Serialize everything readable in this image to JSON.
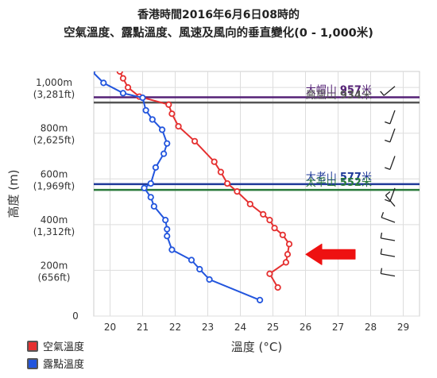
{
  "title_line1": "香港時間2016年6月6日08時的",
  "title_line2": "空氣溫度、露點溫度、風速及風向的垂直變化(0 - 1,000米)",
  "chart_data": {
    "type": "line",
    "xlabel": "溫度 (°C)",
    "ylabel": "高度 (m)",
    "xlim": [
      19.5,
      29.5
    ],
    "ylim": [
      0,
      1070
    ],
    "x_ticks": [
      "20",
      "21",
      "22",
      "23",
      "24",
      "25",
      "26",
      "27",
      "28",
      "29"
    ],
    "y_ticks": [
      {
        "value": 1000,
        "label": "1,000m",
        "sub": "(3,281ft)"
      },
      {
        "value": 800,
        "label": "800m",
        "sub": "(2,625ft)"
      },
      {
        "value": 600,
        "label": "600m",
        "sub": "(1,969ft)"
      },
      {
        "value": 400,
        "label": "400m",
        "sub": "(1,312ft)"
      },
      {
        "value": 200,
        "label": "200m",
        "sub": "(656ft)"
      },
      {
        "value": 0,
        "label": "0",
        "sub": ""
      }
    ],
    "series": [
      {
        "name": "空氣溫度",
        "color": "#e53030",
        "points": [
          [
            20.3,
            1070
          ],
          [
            20.4,
            1040
          ],
          [
            20.55,
            1000
          ],
          [
            20.9,
            960
          ],
          [
            21.8,
            925
          ],
          [
            21.9,
            885
          ],
          [
            22.1,
            830
          ],
          [
            22.6,
            765
          ],
          [
            23.2,
            675
          ],
          [
            23.4,
            630
          ],
          [
            23.6,
            580
          ],
          [
            23.9,
            545
          ],
          [
            24.3,
            490
          ],
          [
            24.7,
            445
          ],
          [
            24.9,
            420
          ],
          [
            25.05,
            385
          ],
          [
            25.3,
            355
          ],
          [
            25.5,
            315
          ],
          [
            25.45,
            270
          ],
          [
            25.4,
            235
          ],
          [
            24.9,
            185
          ],
          [
            25.15,
            125
          ]
        ]
      },
      {
        "name": "露點溫度",
        "color": "#2255dd",
        "points": [
          [
            19.45,
            1070
          ],
          [
            19.8,
            1020
          ],
          [
            20.4,
            975
          ],
          [
            21.0,
            955
          ],
          [
            21.1,
            900
          ],
          [
            21.3,
            860
          ],
          [
            21.6,
            815
          ],
          [
            21.75,
            755
          ],
          [
            21.65,
            710
          ],
          [
            21.4,
            650
          ],
          [
            21.25,
            580
          ],
          [
            21.05,
            560
          ],
          [
            21.25,
            520
          ],
          [
            21.35,
            480
          ],
          [
            21.7,
            420
          ],
          [
            21.75,
            380
          ],
          [
            21.75,
            350
          ],
          [
            21.9,
            290
          ],
          [
            22.5,
            245
          ],
          [
            22.75,
            205
          ],
          [
            23.05,
            160
          ],
          [
            24.6,
            70
          ]
        ]
      }
    ],
    "reference_lines": [
      {
        "label": "大帽山",
        "value_text": "957米",
        "height": 957,
        "color": "#552277"
      },
      {
        "label": "鳳凰山",
        "value_text": "934米",
        "height": 934,
        "color": "#555555"
      },
      {
        "label": "大老山",
        "value_text": "577米",
        "height": 577,
        "color": "#1f3a99"
      },
      {
        "label": "太平山",
        "value_text": "552米",
        "height": 552,
        "color": "#2a7a3a"
      }
    ],
    "wind_barbs": [
      {
        "height": 1005,
        "direction_deg": 230
      },
      {
        "height": 900,
        "direction_deg": 200
      },
      {
        "height": 820,
        "direction_deg": 200
      },
      {
        "height": 700,
        "direction_deg": 200
      },
      {
        "height": 560,
        "direction_deg": 200
      },
      {
        "height": 480,
        "direction_deg": 320
      },
      {
        "height": 410,
        "direction_deg": 290
      },
      {
        "height": 330,
        "direction_deg": 280
      },
      {
        "height": 260,
        "direction_deg": 280
      },
      {
        "height": 175,
        "direction_deg": 280
      }
    ],
    "annotation_arrow_height": 270,
    "grid": true
  },
  "legend": [
    {
      "label": "空氣溫度",
      "color": "#e53030"
    },
    {
      "label": "露點溫度",
      "color": "#2255dd"
    }
  ]
}
